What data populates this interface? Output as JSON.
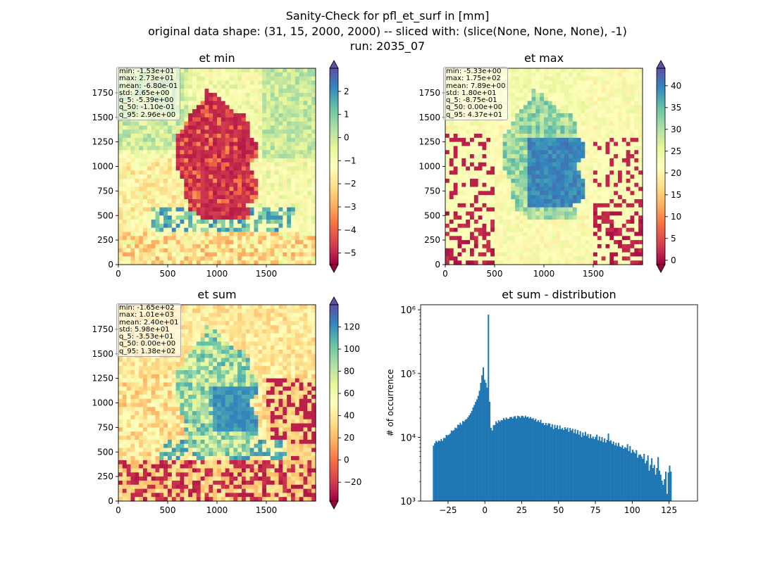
{
  "figure": {
    "title_line1": "Sanity-Check for pfl_et_surf in [mm]",
    "title_line2": "original data shape: (31, 15, 2000, 2000) -- sliced with: (slice(None, None, None), -1)",
    "title_line3": "run: 2035_07"
  },
  "chart_data": [
    {
      "type": "heatmap",
      "title": "et min",
      "colormap": "Spectral",
      "stats": [
        "min: -1.53e+01",
        "max: 2.73e+01",
        "mean: -6.80e-01",
        "std: 2.65e+00",
        "q_5: -5.39e+00",
        "q_50: -1.10e-01",
        "q_95: 2.96e+00"
      ],
      "xlim": [
        0,
        2000
      ],
      "ylim": [
        0,
        2000
      ],
      "xticks": [
        "0",
        "500",
        "1000",
        "1500"
      ],
      "yticks": [
        "0",
        "250",
        "500",
        "750",
        "1000",
        "1250",
        "1500",
        "1750"
      ],
      "colorbar_range": [
        -5.5,
        3
      ],
      "colorbar_ticks": [
        "−5",
        "−4",
        "−3",
        "−2",
        "−1",
        "0",
        "1",
        "2"
      ],
      "colorbar_tick_values": [
        -5,
        -4,
        -3,
        -2,
        -1,
        0,
        1,
        2
      ]
    },
    {
      "type": "heatmap",
      "title": "et max",
      "colormap": "Spectral",
      "stats": [
        "min: -5.33e+00",
        "max: 1.75e+02",
        "mean: 7.89e+00",
        "std: 1.80e+01",
        "q_5: -8.75e-01",
        "q_50: 0.00e+00",
        "q_95: 4.37e+01"
      ],
      "xlim": [
        0,
        2000
      ],
      "ylim": [
        0,
        2000
      ],
      "xticks": [
        "0",
        "500",
        "1000",
        "1500"
      ],
      "yticks": [
        "0",
        "250",
        "500",
        "750",
        "1000",
        "1250",
        "1500",
        "1750"
      ],
      "colorbar_range": [
        -1,
        44
      ],
      "colorbar_ticks": [
        "0",
        "5",
        "10",
        "15",
        "20",
        "25",
        "30",
        "35",
        "40"
      ],
      "colorbar_tick_values": [
        0,
        5,
        10,
        15,
        20,
        25,
        30,
        35,
        40
      ]
    },
    {
      "type": "heatmap",
      "title": "et sum",
      "colormap": "Spectral",
      "stats": [
        "min: -1.65e+02",
        "max: 1.01e+03",
        "mean: 2.40e+01",
        "std: 5.98e+01",
        "q_5: -3.53e+01",
        "q_50: 0.00e+00",
        "q_95: 1.38e+02"
      ],
      "xlim": [
        0,
        2000
      ],
      "ylim": [
        0,
        2000
      ],
      "xticks": [
        "0",
        "500",
        "1000",
        "1500"
      ],
      "yticks": [
        "0",
        "250",
        "500",
        "750",
        "1000",
        "1250",
        "1500",
        "1750"
      ],
      "colorbar_range": [
        -37,
        140
      ],
      "colorbar_ticks": [
        "−20",
        "0",
        "20",
        "40",
        "60",
        "80",
        "100",
        "120"
      ],
      "colorbar_tick_values": [
        -20,
        0,
        20,
        40,
        60,
        80,
        100,
        120
      ]
    },
    {
      "type": "bar",
      "title": "et sum - distribution",
      "ylabel": "# of occurrence",
      "yscale": "log",
      "color": "#1f77b4",
      "xlim": [
        -43.6,
        144.3
      ],
      "ylim": [
        1000,
        1200000
      ],
      "xticks": [
        "−25",
        "0",
        "25",
        "50",
        "75",
        "100",
        "125"
      ],
      "xtick_values": [
        -25,
        0,
        25,
        50,
        75,
        100,
        125
      ],
      "yticks": [
        "10³",
        "10⁴",
        "10⁵",
        "10⁶"
      ],
      "ytick_values": [
        1000,
        10000,
        100000,
        1000000
      ],
      "bins": {
        "start": -35.3,
        "width": 0.866
      },
      "counts": [
        7400,
        8100,
        8800,
        8400,
        8900,
        8700,
        9400,
        8800,
        9800,
        9700,
        10900,
        10700,
        11000,
        11400,
        12800,
        12600,
        13000,
        14200,
        13900,
        15800,
        15600,
        16900,
        15800,
        18000,
        17700,
        18900,
        19400,
        20700,
        22200,
        23800,
        26000,
        29400,
        32300,
        36000,
        39400,
        44800,
        53600,
        71400,
        94100,
        125000,
        80000,
        72000,
        60000,
        840000,
        36000,
        14100,
        12800,
        15500,
        15600,
        17800,
        16700,
        18500,
        17600,
        18600,
        18500,
        20000,
        18900,
        20400,
        19500,
        19600,
        20700,
        20900,
        19800,
        21200,
        21500,
        19700,
        21800,
        21400,
        20300,
        21800,
        21600,
        20400,
        21800,
        20600,
        21100,
        19800,
        20800,
        19500,
        20000,
        18600,
        19600,
        17600,
        18600,
        17300,
        18800,
        16600,
        16800,
        15600,
        16800,
        15400,
        16600,
        16400,
        14500,
        16000,
        13500,
        15700,
        14100,
        15500,
        13400,
        15300,
        13400,
        14000,
        13000,
        14400,
        13400,
        14200,
        12200,
        14000,
        12800,
        13600,
        11700,
        13400,
        11400,
        13000,
        11000,
        12500,
        10100,
        11900,
        10600,
        12200,
        10500,
        11300,
        9700,
        11200,
        9700,
        10300,
        9400,
        10200,
        11000,
        9000,
        10300,
        8800,
        10100,
        8400,
        9600,
        8300,
        9100,
        11500,
        8700,
        9000,
        7900,
        8600,
        7500,
        8200,
        7300,
        8200,
        7200,
        7000,
        7500,
        6600,
        7000,
        6800,
        7800,
        6100,
        7300,
        5700,
        6400,
        5900,
        5600,
        6300,
        4800,
        5300,
        5400,
        5000,
        4600,
        5500,
        3900,
        4300,
        5200,
        3000,
        3700,
        4700,
        3300,
        3700,
        2600,
        3300,
        4900,
        3000,
        2600,
        2100,
        1800,
        2200,
        2900,
        1300,
        2800,
        3600,
        2900
      ]
    }
  ]
}
